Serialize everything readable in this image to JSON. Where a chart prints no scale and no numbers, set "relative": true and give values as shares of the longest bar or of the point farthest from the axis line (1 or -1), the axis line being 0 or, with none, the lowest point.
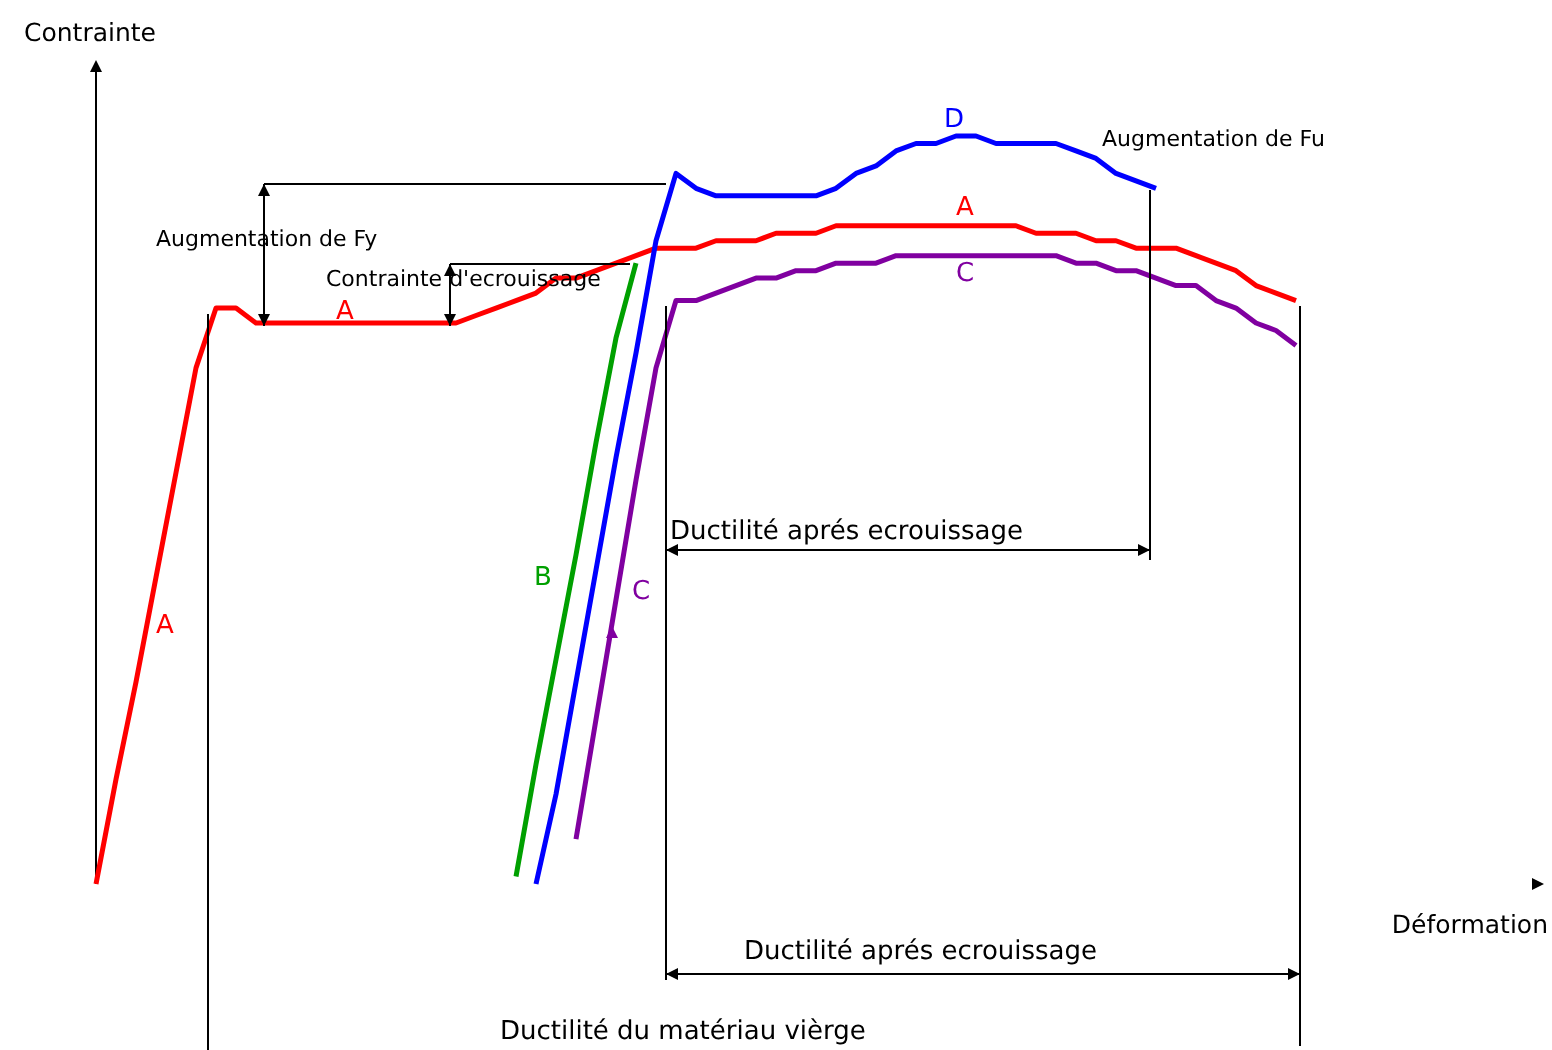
{
  "chart_data": {
    "type": "line",
    "relative": true,
    "xlabel": "Déformation",
    "ylabel": "Contrainte",
    "categories": [
      null,
      null,
      null,
      null,
      null,
      null,
      null,
      null,
      null,
      null,
      null,
      null,
      null,
      null,
      null,
      null,
      null,
      null,
      null,
      null,
      null,
      null,
      null,
      null,
      null,
      null,
      null,
      null,
      null,
      null,
      null,
      null,
      null,
      null,
      null,
      null,
      null,
      null,
      null,
      null,
      null,
      null,
      null,
      null,
      null,
      null,
      null,
      null,
      null,
      null,
      null,
      null,
      null,
      null,
      null,
      null,
      null,
      null,
      null,
      null,
      null
    ],
    "series": [
      {
        "name": "A",
        "color": "#ff0000",
        "values": [
          0,
          0.14,
          0.27,
          0.41,
          0.55,
          0.69,
          0.77,
          0.77,
          0.75,
          0.75,
          0.75,
          0.75,
          0.75,
          0.75,
          0.75,
          0.75,
          0.75,
          0.75,
          0.75,
          0.76,
          0.77,
          0.78,
          0.79,
          0.81,
          0.81,
          0.82,
          0.83,
          0.84,
          0.85,
          0.85,
          0.85,
          0.86,
          0.86,
          0.86,
          0.87,
          0.87,
          0.87,
          0.88,
          0.88,
          0.88,
          0.88,
          0.88,
          0.88,
          0.88,
          0.88,
          0.88,
          0.88,
          0.87,
          0.87,
          0.87,
          0.86,
          0.86,
          0.85,
          0.85,
          0.85,
          0.84,
          0.83,
          0.82,
          0.8,
          0.79,
          0.78
        ]
      },
      {
        "name": "B",
        "color": "#00a000",
        "values": [
          null,
          null,
          null,
          null,
          null,
          null,
          null,
          null,
          null,
          null,
          null,
          null,
          null,
          null,
          null,
          null,
          null,
          null,
          null,
          null,
          null,
          0.01,
          0.16,
          0.3,
          0.44,
          0.59,
          0.73,
          0.83,
          null,
          null,
          null,
          null,
          null,
          null,
          null,
          null,
          null,
          null,
          null,
          null,
          null,
          null,
          null,
          null,
          null,
          null,
          null,
          null,
          null,
          null,
          null,
          null,
          null,
          null,
          null,
          null,
          null,
          null,
          null,
          null,
          null
        ]
      },
      {
        "name": "C",
        "color": "#8000a0",
        "values": [
          null,
          null,
          null,
          null,
          null,
          null,
          null,
          null,
          null,
          null,
          null,
          null,
          null,
          null,
          null,
          null,
          null,
          null,
          null,
          null,
          null,
          null,
          null,
          null,
          0.06,
          0.22,
          0.38,
          0.54,
          0.69,
          0.78,
          0.78,
          0.79,
          0.8,
          0.81,
          0.81,
          0.82,
          0.82,
          0.83,
          0.83,
          0.83,
          0.84,
          0.84,
          0.84,
          0.84,
          0.84,
          0.84,
          0.84,
          0.84,
          0.84,
          0.83,
          0.83,
          0.82,
          0.82,
          0.81,
          0.8,
          0.8,
          0.78,
          0.77,
          0.75,
          0.74,
          0.72
        ]
      },
      {
        "name": "D",
        "color": "#0000ff",
        "values": [
          null,
          null,
          null,
          null,
          null,
          null,
          null,
          null,
          null,
          null,
          null,
          null,
          null,
          null,
          null,
          null,
          null,
          null,
          null,
          null,
          null,
          null,
          0,
          0.12,
          0.27,
          0.42,
          0.57,
          0.71,
          0.86,
          0.95,
          0.93,
          0.92,
          0.92,
          0.92,
          0.92,
          0.92,
          0.92,
          0.93,
          0.95,
          0.96,
          0.98,
          0.99,
          0.99,
          1,
          1,
          0.99,
          0.99,
          0.99,
          0.99,
          0.98,
          0.97,
          0.95,
          0.94,
          0.93,
          null,
          null,
          null,
          null,
          null,
          null,
          null
        ]
      }
    ],
    "annotations": [
      "A",
      "A",
      "C",
      "Augmentation de Fy",
      "Contrainte d'ecrouissage",
      "Augmentation de Fu",
      "Ductilité aprés ecrouissage",
      "Ductilité aprés ecrouissage",
      "Ductilité du matériau vièrge"
    ]
  }
}
